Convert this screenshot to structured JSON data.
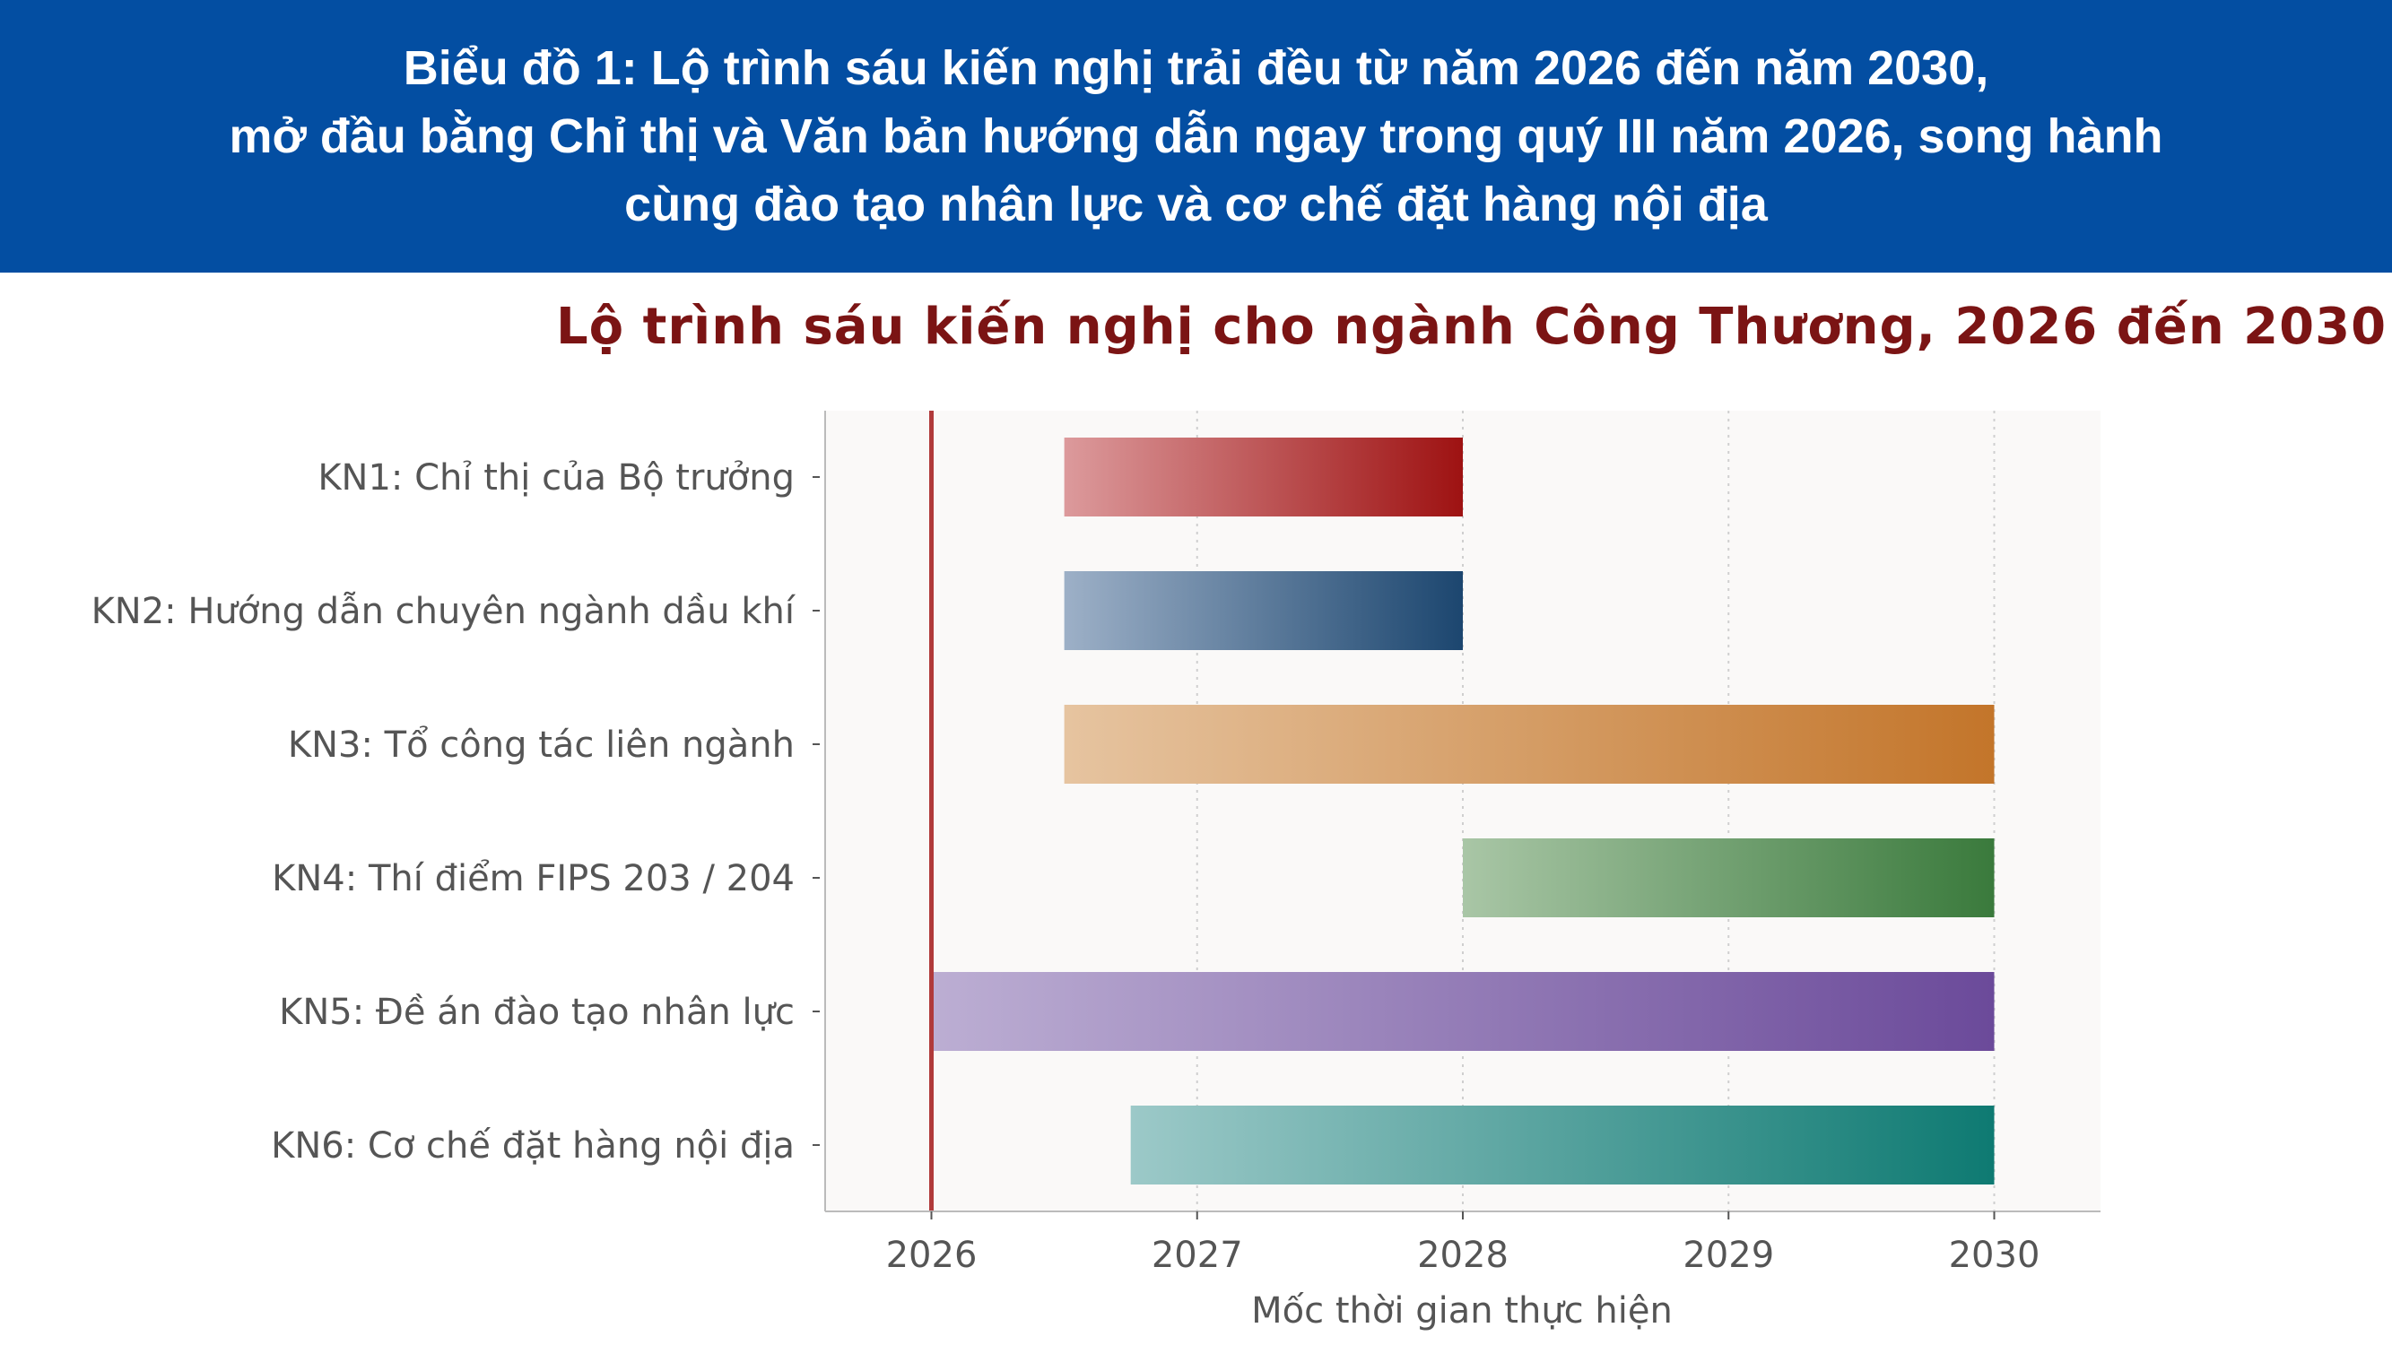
{
  "banner": {
    "line1": "Biểu đồ 1: Lộ trình sáu kiến nghị trải đều từ năm 2026 đến năm 2030,",
    "line2": "mở đầu bằng Chỉ thị và Văn bản hướng dẫn ngay trong quý III năm 2026, song hành",
    "line3": "cùng đào tạo nhân lực và cơ chế đặt hàng nội địa",
    "background": "#034ea2"
  },
  "chart_data": {
    "type": "gantt",
    "title": "Lộ trình sáu kiến nghị cho ngành Công Thương, 2026 đến 2030",
    "xlabel": "Mốc thời gian thực hiện",
    "ylabel": "",
    "xlim": [
      2025.6,
      2030.4
    ],
    "xticks": [
      2026,
      2027,
      2028,
      2029,
      2030
    ],
    "xtick_labels": [
      "2026",
      "2027",
      "2028",
      "2029",
      "2030"
    ],
    "grid": "vertical dotted",
    "reference_line": {
      "x": 2026,
      "color": "#b03a3a"
    },
    "tasks": [
      {
        "label": "KN1: Chỉ thị của Bộ trưởng",
        "start": 2026.5,
        "end": 2028.0,
        "color_start": "#dc9a9c",
        "color_end": "#9e1212"
      },
      {
        "label": "KN2: Hướng dẫn chuyên ngành dầu khí",
        "start": 2026.5,
        "end": 2028.0,
        "color_start": "#9db0c7",
        "color_end": "#1c466f"
      },
      {
        "label": "KN3: Tổ công tác liên ngành",
        "start": 2026.5,
        "end": 2030.0,
        "color_start": "#e6c4a0",
        "color_end": "#c3752a"
      },
      {
        "label": "KN4: Thí điểm FIPS 203 / 204",
        "start": 2028.0,
        "end": 2030.0,
        "color_start": "#a9c6a6",
        "color_end": "#3a7a3c"
      },
      {
        "label": "KN5: Đề án đào tạo nhân lực",
        "start": 2026.0,
        "end": 2030.0,
        "color_start": "#bcaed3",
        "color_end": "#6b4a9a"
      },
      {
        "label": "KN6: Cơ chế đặt hàng nội địa",
        "start": 2026.75,
        "end": 2030.0,
        "color_start": "#9cc9c8",
        "color_end": "#0e7a72"
      }
    ]
  }
}
